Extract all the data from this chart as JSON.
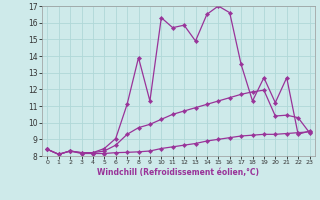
{
  "title": "",
  "xlabel": "Windchill (Refroidissement éolien,°C)",
  "ylabel": "",
  "xlim": [
    -0.5,
    23.5
  ],
  "ylim": [
    8,
    17
  ],
  "xticks": [
    0,
    1,
    2,
    3,
    4,
    5,
    6,
    7,
    8,
    9,
    10,
    11,
    12,
    13,
    14,
    15,
    16,
    17,
    18,
    19,
    20,
    21,
    22,
    23
  ],
  "yticks": [
    8,
    9,
    10,
    11,
    12,
    13,
    14,
    15,
    16,
    17
  ],
  "background_color": "#ceeaea",
  "line_color": "#993399",
  "line1": {
    "x": [
      0,
      1,
      2,
      3,
      4,
      5,
      6,
      7,
      8,
      9,
      10,
      11,
      12,
      13,
      14,
      15,
      16,
      17,
      18,
      19,
      20,
      21,
      22,
      23
    ],
    "y": [
      8.4,
      8.1,
      8.3,
      8.15,
      8.15,
      8.15,
      8.2,
      8.22,
      8.25,
      8.3,
      8.45,
      8.55,
      8.65,
      8.75,
      8.9,
      9.0,
      9.1,
      9.2,
      9.25,
      9.3,
      9.3,
      9.35,
      9.4,
      9.45
    ]
  },
  "line2": {
    "x": [
      0,
      1,
      2,
      3,
      4,
      5,
      6,
      7,
      8,
      9,
      10,
      11,
      12,
      13,
      14,
      15,
      16,
      17,
      18,
      19,
      20,
      21,
      22,
      23
    ],
    "y": [
      8.4,
      8.1,
      8.3,
      8.2,
      8.2,
      8.3,
      8.65,
      9.3,
      9.7,
      9.9,
      10.2,
      10.5,
      10.7,
      10.9,
      11.1,
      11.3,
      11.5,
      11.7,
      11.85,
      11.95,
      10.4,
      10.45,
      10.3,
      9.4
    ]
  },
  "line3": {
    "x": [
      0,
      1,
      2,
      3,
      4,
      5,
      6,
      7,
      8,
      9,
      10,
      11,
      12,
      13,
      14,
      15,
      16,
      17,
      18,
      19,
      20,
      21,
      22,
      23
    ],
    "y": [
      8.4,
      8.1,
      8.3,
      8.2,
      8.2,
      8.45,
      9.05,
      11.1,
      13.9,
      11.3,
      16.3,
      15.7,
      15.85,
      14.9,
      16.5,
      17.0,
      16.6,
      13.5,
      11.3,
      12.7,
      11.2,
      12.7,
      9.3,
      9.5
    ]
  },
  "grid_color": "#b0d8d8",
  "marker": "D",
  "marker_size": 2.2,
  "linewidth": 0.9
}
